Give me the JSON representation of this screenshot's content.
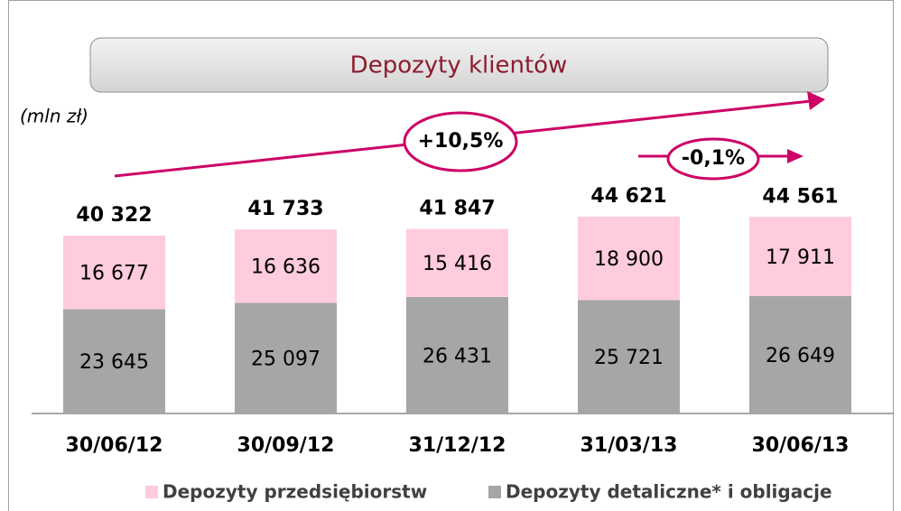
{
  "chart_data": {
    "type": "stacked_bar",
    "title": "Depozyty klientów",
    "unit_label": "(mln zł)",
    "categories": [
      "30/06/12",
      "30/09/12",
      "31/12/12",
      "31/03/13",
      "30/06/13"
    ],
    "series": [
      {
        "name": "Depozyty detaliczne* i obligacje",
        "color": "#a6a6a6",
        "values": [
          23645,
          25097,
          26431,
          25721,
          26649
        ],
        "value_labels": [
          "23 645",
          "25 097",
          "26 431",
          "25 721",
          "26 649"
        ]
      },
      {
        "name": "Depozyty przedsiębiorstw",
        "color": "#ffccdb",
        "values": [
          16677,
          16636,
          15416,
          18900,
          17911
        ],
        "value_labels": [
          "16 677",
          "16 636",
          "15 416",
          "18 900",
          "17 911"
        ]
      }
    ],
    "totals": {
      "values": [
        40322,
        41733,
        41847,
        44621,
        44561
      ],
      "value_labels": [
        "40 322",
        "41 733",
        "41 847",
        "44 621",
        "44 561"
      ]
    },
    "annotations": [
      "+10,5%",
      "-0,1%"
    ],
    "annotation_color": "#cc0066"
  }
}
